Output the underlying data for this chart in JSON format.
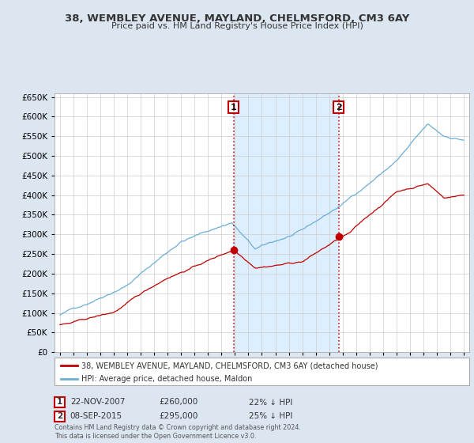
{
  "title": "38, WEMBLEY AVENUE, MAYLAND, CHELMSFORD, CM3 6AY",
  "subtitle": "Price paid vs. HM Land Registry's House Price Index (HPI)",
  "footnote": "Contains HM Land Registry data © Crown copyright and database right 2024.\nThis data is licensed under the Open Government Licence v3.0.",
  "legend_line1": "38, WEMBLEY AVENUE, MAYLAND, CHELMSFORD, CM3 6AY (detached house)",
  "legend_line2": "HPI: Average price, detached house, Maldon",
  "marker1_date": "22-NOV-2007",
  "marker1_price": "£260,000",
  "marker1_hpi": "22% ↓ HPI",
  "marker1_year": 2007.9,
  "marker1_value": 260000,
  "marker2_date": "08-SEP-2015",
  "marker2_price": "£295,000",
  "marker2_hpi": "25% ↓ HPI",
  "marker2_year": 2015.7,
  "marker2_value": 295000,
  "hpi_color": "#6baed6",
  "sale_color": "#c00000",
  "background_color": "#dce6f1",
  "plot_bg_color": "#ffffff",
  "shade_color": "#ddeeff",
  "ylim": [
    0,
    660000
  ],
  "yticks": [
    0,
    50000,
    100000,
    150000,
    200000,
    250000,
    300000,
    350000,
    400000,
    450000,
    500000,
    550000,
    600000,
    650000
  ],
  "xlim_start": 1994.6,
  "xlim_end": 2025.4
}
